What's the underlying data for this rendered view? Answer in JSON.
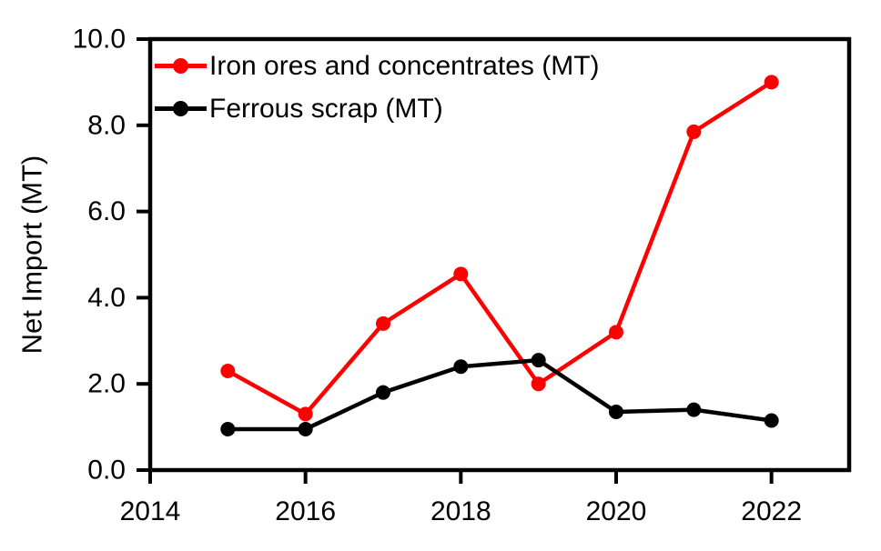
{
  "figure": {
    "background": "#FFFFFF",
    "axis_color": "#000000"
  },
  "chart_data": {
    "type": "line",
    "title": "",
    "xlabel": "",
    "ylabel": "Net Import (MT)",
    "x": [
      2015,
      2016,
      2017,
      2018,
      2019,
      2020,
      2021,
      2022
    ],
    "series": [
      {
        "name": "Iron ores and concentrates (MT)",
        "color": "#FF0000",
        "marker": "circle",
        "values": [
          2.3,
          1.3,
          3.4,
          4.55,
          2.0,
          3.2,
          7.85,
          9.0
        ]
      },
      {
        "name": "Ferrous scrap (MT)",
        "color": "#000000",
        "marker": "circle",
        "values": [
          0.95,
          0.95,
          1.8,
          2.4,
          2.55,
          1.35,
          1.4,
          1.15
        ]
      }
    ],
    "xlim": [
      2014,
      2023
    ],
    "ylim": [
      0,
      10
    ],
    "x_ticks": {
      "values": [
        2014,
        2016,
        2018,
        2020,
        2022
      ],
      "labels": [
        "2014",
        "2016",
        "2018",
        "2020",
        "2022"
      ]
    },
    "y_ticks": {
      "values": [
        0,
        2,
        4,
        6,
        8,
        10
      ],
      "labels": [
        "0.0",
        "2.0",
        "4.0",
        "6.0",
        "8.0",
        "10.0"
      ]
    },
    "grid": false,
    "legend_position": "top-left-inside"
  }
}
